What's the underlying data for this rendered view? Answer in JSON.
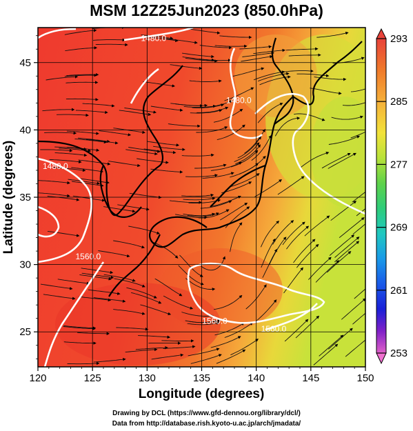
{
  "title": "MSM 12Z25Jun2023 (850.0hPa)",
  "map": {
    "xlabel": "Longitude (degrees)",
    "ylabel": "Latitude  (degrees)",
    "lon_range": [
      120,
      150
    ],
    "lat_range": [
      22.4,
      47.6
    ],
    "lon_ticks": [
      "120",
      "125",
      "130",
      "135",
      "140",
      "145",
      "150"
    ],
    "lat_ticks": [
      "25",
      "30",
      "35",
      "40",
      "45"
    ],
    "contour_labels": [
      {
        "text": "1480.0",
        "lon": 130.6,
        "lat": 46.6
      },
      {
        "text": "1480.0",
        "lon": 121.6,
        "lat": 37.1
      },
      {
        "text": "1560.0",
        "lon": 124.6,
        "lat": 30.4
      },
      {
        "text": "1560.0",
        "lon": 136.2,
        "lat": 25.6
      },
      {
        "text": "1560.0",
        "lon": 141.6,
        "lat": 25.0
      },
      {
        "text": "1480.0",
        "lon": 138.4,
        "lat": 42.0
      }
    ]
  },
  "colorbar": {
    "labels": [
      "293",
      "285",
      "277",
      "269",
      "261",
      "253"
    ],
    "range": [
      253,
      293
    ],
    "colors_top_to_bottom": [
      "#e8423a",
      "#f07a2a",
      "#f5b03a",
      "#f2e23a",
      "#b8e23a",
      "#5ed24a",
      "#2ecc7a",
      "#20c8c0",
      "#1a9ae8",
      "#1a5ae8",
      "#1a20d8",
      "#6020c8",
      "#c020c0",
      "#f070d0"
    ]
  },
  "credits": {
    "line1": "Drawing by DCL (https://www.gfd-dennou.org/library/dcl/)",
    "line2": "Data from http://database.rish.kyoto-u.ac.jp/arch/jmadata/"
  }
}
